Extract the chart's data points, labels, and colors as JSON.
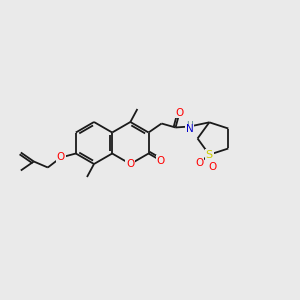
{
  "bg_color": "#eaeaea",
  "bond_color": "#1a1a1a",
  "atom_colors": {
    "O": "#ff0000",
    "N": "#0000cc",
    "S": "#cccc00",
    "H": "#5a9090"
  },
  "figsize": [
    3.0,
    3.0
  ],
  "dpi": 100
}
